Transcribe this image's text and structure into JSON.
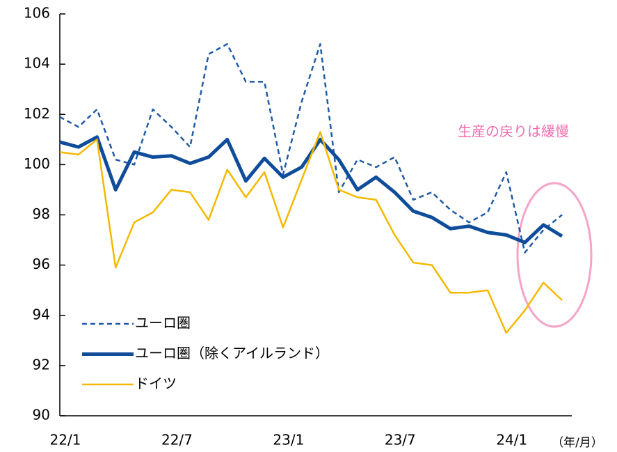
{
  "chart_data": {
    "type": "line",
    "x_unit_label": "（年/月）",
    "annotation": "生産の戻りは緩慢",
    "categories": [
      "22/1",
      null,
      null,
      null,
      null,
      null,
      "22/7",
      null,
      null,
      null,
      null,
      null,
      "23/1",
      null,
      null,
      null,
      null,
      null,
      "23/7",
      null,
      null,
      null,
      null,
      null,
      "24/1",
      null,
      null,
      null
    ],
    "series": [
      {
        "name": "ユーロ圏",
        "color": "#1f5aa6",
        "style": "dashed",
        "values": [
          101.9,
          101.5,
          102.2,
          100.2,
          100.0,
          102.2,
          101.5,
          100.7,
          104.4,
          104.8,
          103.3,
          103.3,
          99.6,
          102.5,
          104.8,
          98.9,
          100.2,
          99.9,
          100.3,
          98.6,
          98.9,
          98.2,
          97.7,
          98.1,
          99.7,
          96.5,
          97.4,
          98.0
        ]
      },
      {
        "name": "ユーロ圏（除くアイルランド）",
        "color": "#0f4c9a",
        "style": "thick",
        "values": [
          100.9,
          100.7,
          101.1,
          99.0,
          100.5,
          100.3,
          100.35,
          100.05,
          100.3,
          101.0,
          99.35,
          100.25,
          99.5,
          99.9,
          101.0,
          100.2,
          99.0,
          99.5,
          98.9,
          98.15,
          97.9,
          97.45,
          97.55,
          97.3,
          97.2,
          96.9,
          97.6,
          97.15
        ]
      },
      {
        "name": "ドイツ",
        "color": "#f5b800",
        "style": "solid",
        "values": [
          100.5,
          100.4,
          101.0,
          95.9,
          97.7,
          98.1,
          99.0,
          98.9,
          97.8,
          99.8,
          98.7,
          99.7,
          97.5,
          99.4,
          101.3,
          99.0,
          98.7,
          98.6,
          97.2,
          96.1,
          96.0,
          94.9,
          94.9,
          95.0,
          93.3,
          94.2,
          95.3,
          94.6
        ]
      }
    ],
    "ylim": [
      90,
      106
    ],
    "yticks": [
      90,
      92,
      94,
      96,
      98,
      100,
      102,
      104,
      106
    ]
  }
}
